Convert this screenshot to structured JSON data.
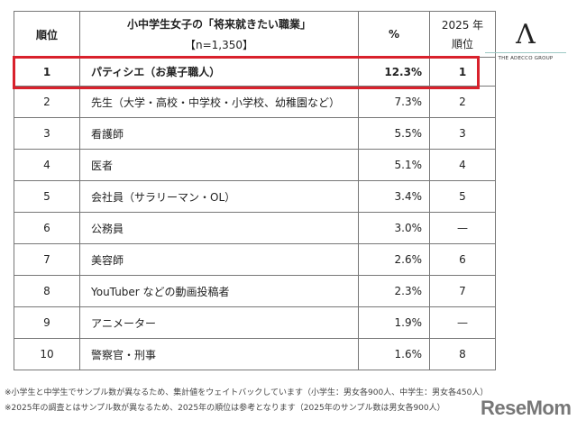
{
  "header": {
    "rank": "順位",
    "title_line1": "小中学生女子の「将来就きたい職業」",
    "title_line2": "【n=1,350】",
    "percent": "%",
    "prev_line1": "2025 年",
    "prev_line2": "順位"
  },
  "rows": [
    {
      "rank": "1",
      "job": "パティシエ（お菓子職人）",
      "pct": "12.3%",
      "prev": "1"
    },
    {
      "rank": "2",
      "job": "先生（大学・高校・中学校・小学校、幼稚園など）",
      "pct": "7.3%",
      "prev": "2"
    },
    {
      "rank": "3",
      "job": "看護師",
      "pct": "5.5%",
      "prev": "3"
    },
    {
      "rank": "4",
      "job": "医者",
      "pct": "5.1%",
      "prev": "4"
    },
    {
      "rank": "5",
      "job": "会社員（サラリーマン・OL）",
      "pct": "3.4%",
      "prev": "5"
    },
    {
      "rank": "6",
      "job": "公務員",
      "pct": "3.0%",
      "prev": "—"
    },
    {
      "rank": "7",
      "job": "美容師",
      "pct": "2.6%",
      "prev": "6"
    },
    {
      "rank": "8",
      "job": "YouTuber などの動画投稿者",
      "pct": "2.3%",
      "prev": "7"
    },
    {
      "rank": "9",
      "job": "アニメーター",
      "pct": "1.9%",
      "prev": "—"
    },
    {
      "rank": "10",
      "job": "警察官・刑事",
      "pct": "1.6%",
      "prev": "8"
    }
  ],
  "highlight_color": "#d9212c",
  "logo": {
    "mark": "A",
    "text": "THE ADECCO GROUP"
  },
  "notes": [
    "※小学生と中学生でサンプル数が異なるため、集計値をウェイトバックしています（小学生：男女各900人、中学生：男女各450人）",
    "※2025年の調査とはサンプル数が異なるため、2025年の順位は参考となります（2025年のサンプル数は男女各900人）"
  ],
  "watermark": "ReseMom"
}
